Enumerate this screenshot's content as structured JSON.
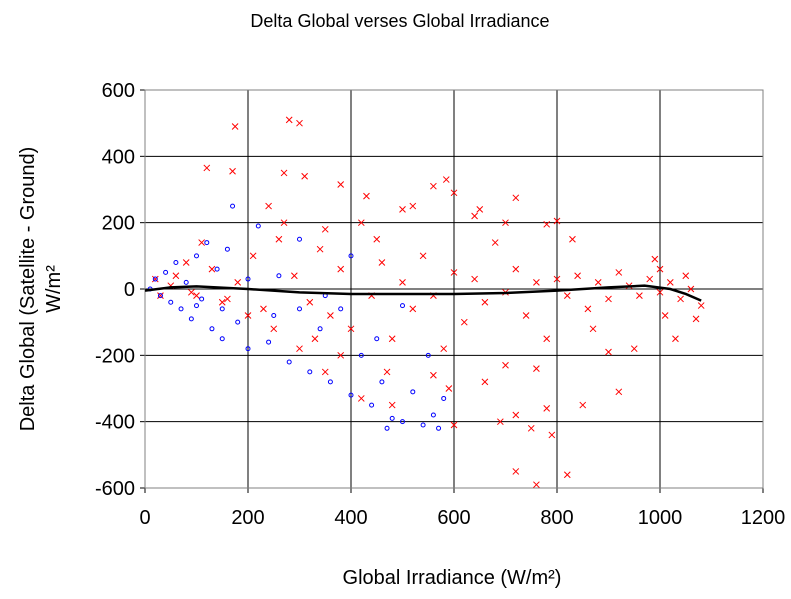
{
  "chart_data": {
    "type": "scatter",
    "title": "Delta Global verses Global Irradiance",
    "xlabel": "Global Irradiance (W/m²)",
    "ylabel_lines": [
      "Delta Global (Satellite - Ground)",
      "W/m²"
    ],
    "xlim": [
      0,
      1200
    ],
    "xticks": [
      0,
      200,
      400,
      600,
      800,
      1000,
      1200
    ],
    "ylim": [
      -600,
      600
    ],
    "yticks": [
      -600,
      -400,
      -200,
      0,
      200,
      400,
      600
    ],
    "grid": true,
    "series": [
      {
        "color": "#ff0000",
        "marker": "x",
        "x": [
          175,
          280,
          300,
          120,
          170,
          270,
          585,
          560,
          380,
          310,
          600,
          720,
          430,
          500,
          650,
          800,
          780,
          990,
          1000,
          1050,
          1080,
          1070,
          950,
          920,
          850,
          820,
          760,
          720,
          750,
          790,
          780,
          690,
          600,
          720,
          660,
          560,
          480,
          420,
          350,
          300,
          250,
          200,
          150,
          100,
          50,
          20,
          30,
          60,
          80,
          90,
          110,
          130,
          160,
          180,
          210,
          230,
          260,
          290,
          320,
          340,
          360,
          380,
          400,
          420,
          440,
          460,
          480,
          500,
          520,
          540,
          560,
          580,
          600,
          620,
          640,
          660,
          680,
          700,
          720,
          740,
          760,
          780,
          800,
          820,
          840,
          860,
          880,
          900,
          920,
          940,
          960,
          980,
          1000,
          1020,
          1040,
          1060,
          700,
          640,
          450,
          520,
          870,
          900,
          830,
          350,
          240,
          270,
          590,
          470,
          380,
          330,
          700,
          760,
          1010,
          1030
        ],
        "values": [
          490,
          510,
          500,
          365,
          355,
          350,
          330,
          310,
          315,
          340,
          290,
          275,
          280,
          240,
          240,
          205,
          195,
          90,
          60,
          40,
          -50,
          -90,
          -180,
          -310,
          -350,
          -560,
          -590,
          -550,
          -420,
          -440,
          -360,
          -400,
          -410,
          -380,
          -280,
          -260,
          -350,
          -330,
          -250,
          -180,
          -120,
          -80,
          -40,
          -20,
          10,
          30,
          -20,
          40,
          80,
          -10,
          140,
          60,
          -30,
          20,
          100,
          -60,
          150,
          40,
          -40,
          120,
          -80,
          60,
          -120,
          200,
          -20,
          80,
          -150,
          20,
          -60,
          100,
          -20,
          -180,
          50,
          -100,
          30,
          -40,
          140,
          -10,
          60,
          -80,
          20,
          -150,
          30,
          -20,
          40,
          -60,
          20,
          -30,
          50,
          10,
          -20,
          30,
          -10,
          20,
          -30,
          0,
          200,
          220,
          150,
          250,
          -120,
          -190,
          150,
          180,
          250,
          200,
          -300,
          -250,
          -200,
          -150,
          -230,
          -240,
          -80,
          -150
        ]
      },
      {
        "color": "#0000ff",
        "marker": "o",
        "x": [
          10,
          20,
          30,
          40,
          50,
          60,
          70,
          80,
          90,
          100,
          110,
          120,
          130,
          140,
          150,
          160,
          170,
          180,
          200,
          220,
          240,
          260,
          280,
          300,
          320,
          340,
          360,
          380,
          400,
          420,
          440,
          460,
          480,
          500,
          520,
          540,
          560,
          570,
          580,
          300,
          250,
          200,
          150,
          100,
          350,
          400,
          450,
          500,
          550,
          470
        ],
        "values": [
          0,
          30,
          -20,
          50,
          -40,
          80,
          -60,
          20,
          -90,
          100,
          -30,
          140,
          -120,
          60,
          -150,
          120,
          250,
          -100,
          -180,
          190,
          -160,
          40,
          -220,
          150,
          -250,
          -120,
          -280,
          -60,
          -320,
          -200,
          -350,
          -280,
          -390,
          -400,
          -310,
          -410,
          -380,
          -420,
          -330,
          -60,
          -80,
          30,
          -60,
          -50,
          -20,
          100,
          -150,
          -50,
          -200,
          -420
        ]
      },
      {
        "color": "#000000",
        "marker": "line",
        "x": [
          0,
          50,
          100,
          200,
          300,
          400,
          500,
          600,
          700,
          800,
          900,
          970,
          1020,
          1050,
          1080
        ],
        "values": [
          -5,
          5,
          8,
          0,
          -10,
          -15,
          -15,
          -15,
          -12,
          -5,
          5,
          10,
          0,
          -15,
          -35
        ]
      }
    ]
  }
}
